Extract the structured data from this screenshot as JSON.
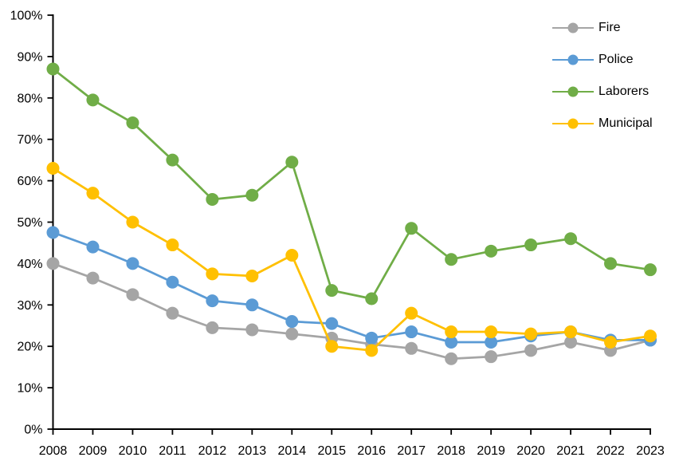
{
  "chart_data": {
    "type": "line",
    "title": "",
    "categories": [
      "2008",
      "2009",
      "2010",
      "2011",
      "2012",
      "2013",
      "2014",
      "2015",
      "2016",
      "2017",
      "2018",
      "2019",
      "2020",
      "2021",
      "2022",
      "2023"
    ],
    "series": [
      {
        "name": "Fire",
        "color": "#A5A5A5",
        "values": [
          40,
          36.5,
          32.5,
          28,
          24.5,
          24,
          23,
          22,
          20.5,
          19.5,
          17,
          17.5,
          19,
          21,
          19,
          21.5
        ]
      },
      {
        "name": "Police",
        "color": "#5B9BD5",
        "values": [
          47.5,
          44,
          40,
          35.5,
          31,
          30,
          26,
          25.5,
          22,
          23.5,
          21,
          21,
          22.5,
          23.5,
          21.5,
          21.5
        ]
      },
      {
        "name": "Laborers",
        "color": "#70AD47",
        "values": [
          87,
          79.5,
          74,
          65,
          55.5,
          56.5,
          64.5,
          33.5,
          31.5,
          48.5,
          41,
          43,
          44.5,
          46,
          40,
          38.5
        ]
      },
      {
        "name": "Municipal",
        "color": "#FFC000",
        "values": [
          63,
          57,
          50,
          44.5,
          37.5,
          37,
          42,
          20,
          19,
          28,
          23.5,
          23.5,
          23,
          23.5,
          21,
          22.5
        ]
      }
    ],
    "y_axis": {
      "min": 0,
      "max": 100,
      "step": 10,
      "labels": [
        "0%",
        "10%",
        "20%",
        "30%",
        "40%",
        "50%",
        "60%",
        "70%",
        "80%",
        "90%",
        "100%"
      ]
    },
    "x_axis": {
      "labels": [
        "2008",
        "2009",
        "2010",
        "2011",
        "2012",
        "2013",
        "2014",
        "2015",
        "2016",
        "2017",
        "2018",
        "2019",
        "2020",
        "2021",
        "2022",
        "2023"
      ]
    },
    "legend": {
      "position": "top-right",
      "items": [
        "Fire",
        "Police",
        "Laborers",
        "Municipal"
      ]
    },
    "grid": false,
    "marker": "circle",
    "colors": {
      "axis": "#000000",
      "text": "#000000",
      "background": "#FFFFFF"
    }
  }
}
